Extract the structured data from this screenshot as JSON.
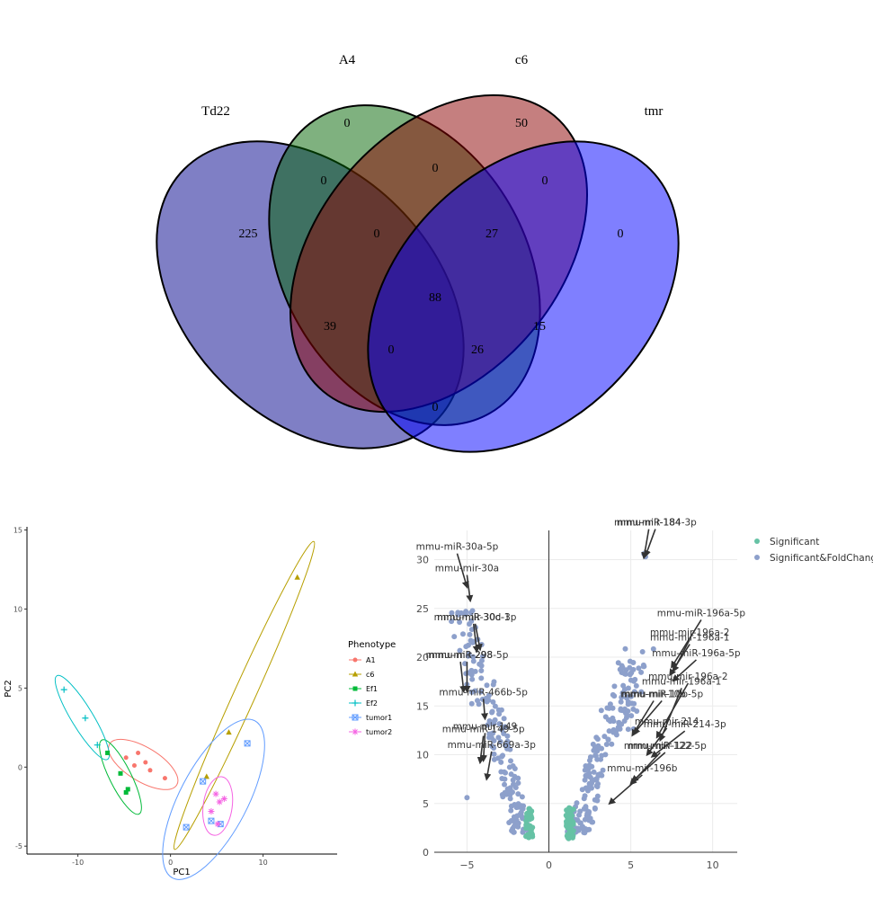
{
  "chart_data": [
    {
      "type": "venn",
      "sets": [
        {
          "name": "Td22",
          "color": "#00008b"
        },
        {
          "name": "A4",
          "color": "#006400"
        },
        {
          "name": "c6",
          "color": "#8b0000"
        },
        {
          "name": "tmr",
          "color": "#0000ff"
        }
      ],
      "regions": [
        {
          "sets": [
            "Td22"
          ],
          "value": 225
        },
        {
          "sets": [
            "A4"
          ],
          "value": 0
        },
        {
          "sets": [
            "c6"
          ],
          "value": 50
        },
        {
          "sets": [
            "tmr"
          ],
          "value": 0
        },
        {
          "sets": [
            "Td22",
            "A4"
          ],
          "value": 0
        },
        {
          "sets": [
            "A4",
            "c6"
          ],
          "value": 0
        },
        {
          "sets": [
            "c6",
            "tmr"
          ],
          "value": 0
        },
        {
          "sets": [
            "Td22",
            "A4",
            "c6"
          ],
          "value": 0
        },
        {
          "sets": [
            "A4",
            "c6",
            "tmr"
          ],
          "value": 27
        },
        {
          "sets": [
            "Td22",
            "A4",
            "c6",
            "tmr"
          ],
          "value": 88
        },
        {
          "sets": [
            "Td22",
            "c6"
          ],
          "value": 39
        },
        {
          "sets": [
            "A4",
            "tmr"
          ],
          "value": 15
        },
        {
          "sets": [
            "Td22",
            "c6",
            "tmr"
          ],
          "value": 0
        },
        {
          "sets": [
            "Td22",
            "A4",
            "tmr"
          ],
          "value": 26
        },
        {
          "sets": [
            "Td22",
            "tmr"
          ],
          "value": 0
        }
      ]
    },
    {
      "type": "scatter",
      "xlabel": "PC1",
      "ylabel": "PC2",
      "xlim": [
        -15.5,
        18
      ],
      "ylim": [
        -5.5,
        15.2
      ],
      "xticks": [
        -10,
        0,
        10
      ],
      "yticks": [
        -5,
        0,
        5,
        10,
        15
      ],
      "legend": {
        "title": "Phenotype",
        "placement": "right"
      },
      "series": [
        {
          "name": "A1",
          "color": "#f8766d",
          "symbol": "circle",
          "points": [
            [
              -3.5,
              0.9
            ],
            [
              -2.7,
              0.3
            ],
            [
              -3.9,
              0.1
            ],
            [
              -2.2,
              -0.2
            ],
            [
              -0.6,
              -0.7
            ],
            [
              -4.8,
              0.6
            ]
          ]
        },
        {
          "name": "c6",
          "color": "#b79f00",
          "symbol": "triangle",
          "points": [
            [
              13.7,
              12.0
            ],
            [
              6.3,
              2.2
            ],
            [
              3.9,
              -0.6
            ]
          ]
        },
        {
          "name": "Ef1",
          "color": "#00ba38",
          "symbol": "square",
          "points": [
            [
              -6.8,
              0.9
            ],
            [
              -5.4,
              -0.4
            ],
            [
              -4.6,
              -1.4
            ],
            [
              -4.8,
              -1.6
            ]
          ]
        },
        {
          "name": "Ef2",
          "color": "#00bfc4",
          "symbol": "plus",
          "points": [
            [
              -11.5,
              4.9
            ],
            [
              -9.2,
              3.1
            ],
            [
              -7.9,
              1.4
            ]
          ]
        },
        {
          "name": "tumor1",
          "color": "#619cff",
          "symbol": "square-cross",
          "points": [
            [
              8.3,
              1.5
            ],
            [
              1.7,
              -3.8
            ],
            [
              4.4,
              -3.4
            ],
            [
              5.4,
              -3.6
            ],
            [
              3.5,
              -0.9
            ]
          ]
        },
        {
          "name": "tumor2",
          "color": "#f564e3",
          "symbol": "asterisk",
          "points": [
            [
              4.9,
              -1.7
            ],
            [
              5.3,
              -2.2
            ],
            [
              5.8,
              -2.0
            ],
            [
              4.4,
              -2.8
            ],
            [
              5.1,
              -3.6
            ]
          ]
        }
      ]
    },
    {
      "type": "scatter",
      "xlim": [
        -7,
        11.5
      ],
      "ylim": [
        0,
        33
      ],
      "xticks": [
        -5,
        0,
        5,
        10
      ],
      "yticks": [
        0,
        5,
        10,
        15,
        20,
        25,
        30
      ],
      "legend": {
        "placement": "top-right"
      },
      "series": [
        {
          "name": "Significant",
          "color": "#66c2a5"
        },
        {
          "name": "Significant&FoldChange",
          "color": "#8da0cb"
        }
      ],
      "annotations": [
        {
          "label": "mmu-miR-30a-5p",
          "x": -5.6,
          "y": 31.0,
          "tx": -5.0,
          "ty": 27.2
        },
        {
          "label": "mmu-mir-30a",
          "x": -5.0,
          "y": 28.8,
          "tx": -4.8,
          "ty": 25.8
        },
        {
          "label": "mmu-miR-30d-3p",
          "x": -4.5,
          "y": 23.8,
          "tx": -4.2,
          "ty": 20.8
        },
        {
          "label": "mmu-mir-30c-1",
          "x": -4.6,
          "y": 23.8,
          "tx": -4.4,
          "ty": 20.6
        },
        {
          "label": "mmu-miR-298-5p",
          "x": -5.0,
          "y": 19.9,
          "tx": -5.0,
          "ty": 16.5
        },
        {
          "label": "mmu-mir-298",
          "x": -5.4,
          "y": 19.9,
          "tx": -5.2,
          "ty": 16.5
        },
        {
          "label": "mmu-miR-466b-5p",
          "x": -4.0,
          "y": 16.1,
          "tx": -3.9,
          "ty": 13.7
        },
        {
          "label": "mmu-miR-149-5p",
          "x": -4.0,
          "y": 12.3,
          "tx": -4.2,
          "ty": 9.2
        },
        {
          "label": "mmu-mir-149",
          "x": -3.9,
          "y": 12.6,
          "tx": -4.0,
          "ty": 9.4
        },
        {
          "label": "mmu-miR-669a-3p",
          "x": -3.5,
          "y": 10.7,
          "tx": -3.8,
          "ty": 7.5
        },
        {
          "label": "mmu-miR-184-3p",
          "x": 6.5,
          "y": 33.5,
          "tx": 5.9,
          "ty": 30.4
        },
        {
          "label": "mmu-mir-184",
          "x": 6.1,
          "y": 33.5,
          "tx": 5.8,
          "ty": 30.2
        },
        {
          "label": "mmu-miR-196a-5p",
          "x": 9.3,
          "y": 24.2,
          "tx": 7.5,
          "ty": 19.0
        },
        {
          "label": "mmu-mir-196a-2",
          "x": 8.6,
          "y": 22.2,
          "tx": 7.6,
          "ty": 18.6
        },
        {
          "label": "mmu-mir-196a-1",
          "x": 8.6,
          "y": 21.7,
          "tx": 7.4,
          "ty": 18.2
        },
        {
          "label": "mmu-miR-196a-5p",
          "x": 9.0,
          "y": 20.1,
          "tx": 7.6,
          "ty": 17.6
        },
        {
          "label": "mmu-mir-196a-2",
          "x": 8.5,
          "y": 17.7,
          "tx": 6.6,
          "ty": 11.8
        },
        {
          "label": "mmu-mir-196a-1",
          "x": 8.1,
          "y": 17.2,
          "tx": 6.8,
          "ty": 11.5
        },
        {
          "label": "mmu-miR-10b-5p",
          "x": 6.9,
          "y": 15.9,
          "tx": 5.2,
          "ty": 12.2
        },
        {
          "label": "mmu-mir-10b",
          "x": 6.4,
          "y": 15.9,
          "tx": 5.1,
          "ty": 12.0
        },
        {
          "label": "mmu-miR-214-3p",
          "x": 8.3,
          "y": 12.8,
          "tx": 6.3,
          "ty": 9.8
        },
        {
          "label": "mmu-mir-214",
          "x": 7.2,
          "y": 13.1,
          "tx": 6.0,
          "ty": 10.0
        },
        {
          "label": "mmu-miR-122-5p",
          "x": 7.1,
          "y": 10.6,
          "tx": 5.1,
          "ty": 7.3
        },
        {
          "label": "mmu-mir-122",
          "x": 6.8,
          "y": 10.6,
          "tx": 5.0,
          "ty": 7.0
        },
        {
          "label": "mmu-mir-196b",
          "x": 5.7,
          "y": 8.3,
          "tx": 3.7,
          "ty": 5.0
        }
      ]
    }
  ]
}
